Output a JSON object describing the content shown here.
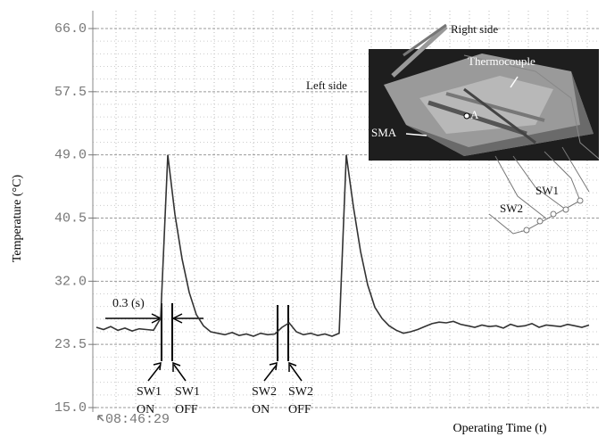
{
  "chart_data": {
    "type": "line",
    "y_label": "Temperature (°C)",
    "x_label": "Operating Time (t)",
    "categories": [
      "08:46:29",
      null,
      null,
      null,
      null,
      null,
      null,
      null,
      null,
      null,
      null,
      null,
      null,
      null,
      null,
      null,
      null,
      null,
      null,
      null,
      null,
      null,
      null,
      null,
      null,
      null,
      null,
      null,
      null,
      null,
      null,
      null,
      null,
      null,
      null,
      null,
      null,
      null,
      null,
      null,
      null,
      null,
      null,
      null,
      null,
      null,
      null,
      null,
      null,
      null,
      null,
      null,
      null,
      null,
      null,
      null,
      null,
      null,
      null,
      null,
      null,
      null,
      null,
      null,
      null,
      null,
      null,
      null,
      null,
      null
    ],
    "values": [
      25.8,
      25.5,
      25.9,
      25.4,
      25.7,
      25.3,
      25.6,
      25.5,
      25.4,
      27.0,
      49.0,
      41.0,
      35.0,
      30.5,
      27.5,
      26.0,
      25.2,
      25.0,
      24.8,
      25.1,
      24.7,
      24.9,
      24.6,
      25.0,
      24.8,
      24.9,
      25.8,
      26.4,
      25.2,
      24.8,
      25.0,
      24.7,
      24.9,
      24.6,
      25.0,
      49.0,
      42.0,
      36.0,
      31.5,
      28.5,
      27.0,
      26.0,
      25.4,
      25.0,
      25.2,
      25.5,
      25.9,
      26.3,
      26.5,
      26.4,
      26.6,
      26.2,
      26.0,
      25.8,
      26.1,
      25.9,
      26.0,
      25.7,
      26.2,
      25.9,
      26.0,
      26.3,
      25.8,
      26.1,
      26.0,
      25.9,
      26.2,
      26.0,
      25.8,
      26.1
    ],
    "color": "#333333",
    "ylim": [
      15,
      66
    ],
    "yticks": [
      {
        "value": 15,
        "label": "15.0"
      },
      23.5,
      {
        "value": 32,
        "label": "32.0"
      },
      40.5,
      {
        "value": 49,
        "label": "49.0"
      },
      57.5,
      {
        "value": 66,
        "label": "66.0"
      }
    ],
    "grid": true,
    "annotations": [
      {
        "lines": [
          "0.3 (s)"
        ]
      },
      {
        "lines": [
          "SW1",
          "ON"
        ]
      },
      {
        "lines": [
          "SW1",
          "OFF"
        ]
      },
      {
        "lines": [
          "SW2",
          "ON"
        ]
      },
      {
        "lines": [
          "SW2",
          "OFF"
        ]
      }
    ],
    "inset_labels": [
      "Right side",
      "Left side",
      "Thermocouple",
      "SMA",
      "A",
      "SW1",
      "SW2"
    ]
  }
}
